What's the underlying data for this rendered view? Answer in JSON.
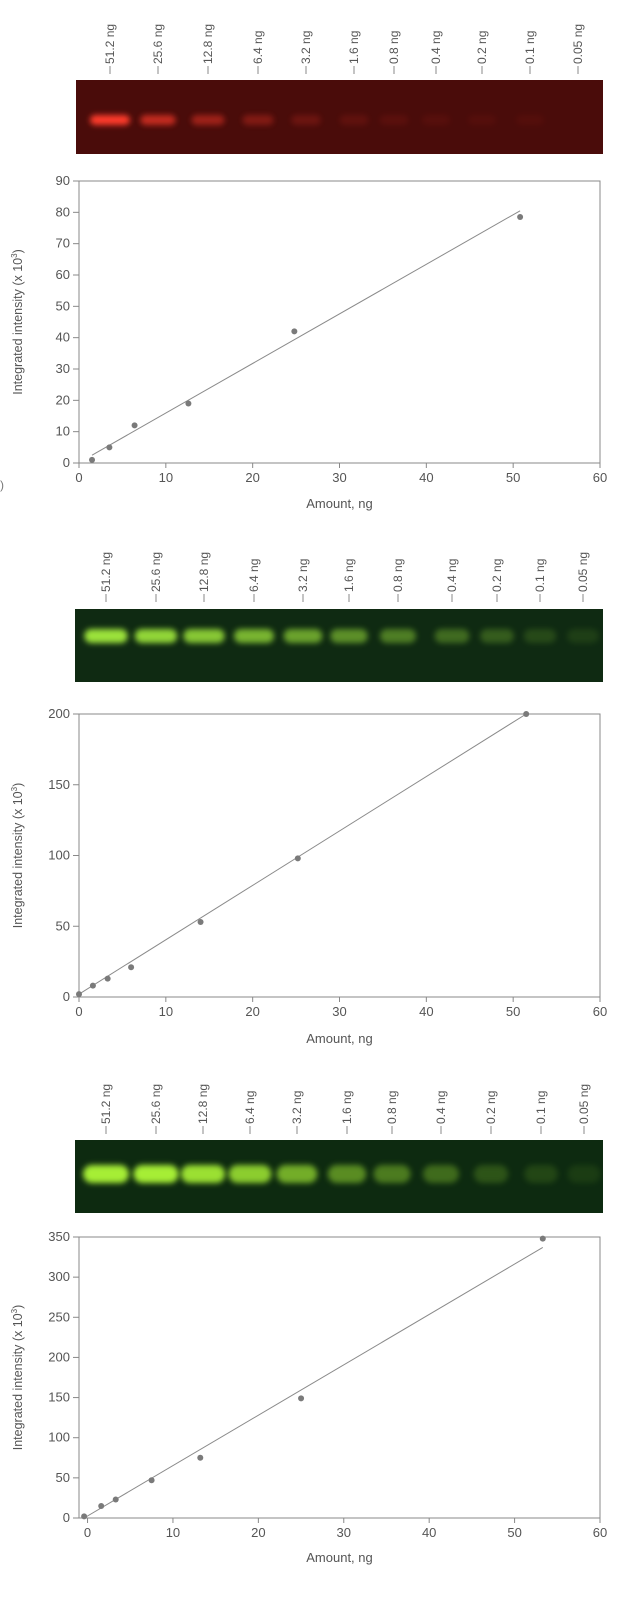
{
  "stray_label": ")",
  "colors": {
    "gel_red_bg": "#4a0c0a",
    "gel_red_band": "#ff3b2a",
    "gel_green_bg": "#0f2a12",
    "gel_green_band": "#9be23a",
    "gel_green3_bg": "#0d2a10",
    "gel_green3_band": "#a6ee34",
    "data_point": "#7a7a7a",
    "fit_line": "#8a8a8a",
    "axis": "#888888",
    "text": "#555555"
  },
  "gels": [
    {
      "lane_labels": [
        "51.2 ng",
        "25.6 ng",
        "12.8 ng",
        "6.4 ng",
        "3.2 ng",
        "1.6 ng",
        "0.8 ng",
        "0.4 ng",
        "0.2 ng",
        "0.1 ng",
        "0.05 ng"
      ],
      "band_intensity": [
        1.0,
        0.62,
        0.42,
        0.26,
        0.14,
        0.07,
        0.04,
        0.02,
        0.01,
        0.005,
        0.0
      ]
    },
    {
      "lane_labels": [
        "51.2 ng",
        "25.6 ng",
        "12.8 ng",
        "6.4 ng",
        "3.2 ng",
        "1.6 ng",
        "0.8 ng",
        "0.4 ng",
        "0.2 ng",
        "0.1 ng",
        "0.05 ng"
      ],
      "band_intensity": [
        0.95,
        0.88,
        0.8,
        0.7,
        0.6,
        0.5,
        0.4,
        0.3,
        0.22,
        0.12,
        0.06
      ]
    },
    {
      "lane_labels": [
        "51.2 ng",
        "25.6 ng",
        "12.8 ng",
        "6.4 ng",
        "3.2 ng",
        "1.6 ng",
        "0.8 ng",
        "0.4 ng",
        "0.2 ng",
        "0.1 ng",
        "0.05 ng"
      ],
      "band_intensity": [
        1.0,
        0.95,
        0.88,
        0.78,
        0.62,
        0.45,
        0.36,
        0.28,
        0.16,
        0.09,
        0.04
      ]
    }
  ],
  "chart_data": [
    {
      "type": "scatter",
      "title": "",
      "xlabel": "Amount, ng",
      "ylabel": "Integrated intensity (x 10",
      "ylabel_sup": "3",
      "ylabel_close": ")",
      "xlim": [
        0,
        60
      ],
      "ylim": [
        0,
        90
      ],
      "x_ticks": [
        0,
        10,
        20,
        30,
        40,
        50,
        60
      ],
      "y_ticks": [
        0,
        10,
        20,
        30,
        40,
        50,
        60,
        70,
        80,
        90
      ],
      "grid": false,
      "points": [
        {
          "x": 1.5,
          "y": 1
        },
        {
          "x": 3.5,
          "y": 5
        },
        {
          "x": 6.4,
          "y": 12
        },
        {
          "x": 12.6,
          "y": 19
        },
        {
          "x": 24.8,
          "y": 42
        },
        {
          "x": 50.8,
          "y": 78.5
        }
      ],
      "fit_line": [
        {
          "x": 1.5,
          "y": 2.5
        },
        {
          "x": 50.8,
          "y": 80.5
        }
      ]
    },
    {
      "type": "scatter",
      "title": "",
      "xlabel": "Amount, ng",
      "ylabel": "Integrated intensity (x 10",
      "ylabel_sup": "3",
      "ylabel_close": ")",
      "xlim": [
        0,
        60
      ],
      "ylim": [
        0,
        200
      ],
      "x_ticks": [
        0,
        10,
        20,
        30,
        40,
        50,
        60
      ],
      "y_ticks": [
        0,
        50,
        100,
        150,
        200
      ],
      "grid": false,
      "points": [
        {
          "x": 0,
          "y": 2
        },
        {
          "x": 1.6,
          "y": 8
        },
        {
          "x": 3.3,
          "y": 13
        },
        {
          "x": 6,
          "y": 21
        },
        {
          "x": 14,
          "y": 53
        },
        {
          "x": 25.2,
          "y": 98
        },
        {
          "x": 51.5,
          "y": 200
        }
      ],
      "fit_line": [
        {
          "x": 0,
          "y": 2
        },
        {
          "x": 51.5,
          "y": 200
        }
      ]
    },
    {
      "type": "scatter",
      "title": "",
      "xlabel": "Amount, ng",
      "ylabel": "Integrated intensity (x 10",
      "ylabel_sup": "3",
      "ylabel_close": ")",
      "xlim": [
        -1,
        60
      ],
      "ylim": [
        0,
        350
      ],
      "x_ticks": [
        0,
        10,
        20,
        30,
        40,
        50,
        60
      ],
      "y_ticks": [
        0,
        50,
        100,
        150,
        200,
        250,
        300,
        350
      ],
      "grid": false,
      "points": [
        {
          "x": -0.4,
          "y": 2
        },
        {
          "x": 1.6,
          "y": 15
        },
        {
          "x": 3.3,
          "y": 23
        },
        {
          "x": 7.5,
          "y": 47
        },
        {
          "x": 13.2,
          "y": 75
        },
        {
          "x": 25,
          "y": 149
        },
        {
          "x": 53.3,
          "y": 348
        }
      ],
      "fit_line": [
        {
          "x": -0.4,
          "y": 0
        },
        {
          "x": 53.3,
          "y": 337
        }
      ]
    }
  ]
}
